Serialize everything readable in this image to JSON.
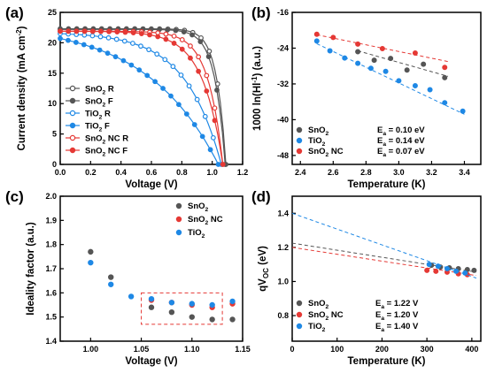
{
  "figure_labels": [
    "(a)",
    "(b)",
    "(c)",
    "(d)"
  ],
  "chart_data": [
    {
      "panel": "(a)",
      "type": "line",
      "xlabel": "Voltage (V)",
      "ylabel": "Current density (mA cm-2)",
      "ylabel_parts": [
        "Current density (mA cm",
        "-2",
        ")"
      ],
      "xlim": [
        0,
        1.2
      ],
      "ylim": [
        0,
        25
      ],
      "xticks": [
        "0.0",
        "0.2",
        "0.4",
        "0.6",
        "0.8",
        "1.0",
        "1.2"
      ],
      "yticks": [
        "0",
        "5",
        "10",
        "15",
        "20",
        "25"
      ],
      "legend_position": "bottom-left",
      "series": [
        {
          "name": "SnO2 R",
          "label_parts": [
            "SnO",
            "2",
            " R"
          ],
          "color": "#555555",
          "filled": false,
          "jsc": 22.3,
          "voc": 1.09,
          "n": 18,
          "v0": 0.845
        },
        {
          "name": "SnO2 F",
          "label_parts": [
            "SnO",
            "2",
            " F"
          ],
          "color": "#555555",
          "filled": true,
          "jsc": 22.2,
          "voc": 1.085,
          "n": 16,
          "v0": 0.83
        },
        {
          "name": "TiO2 R",
          "label_parts": [
            "TiO",
            "2",
            " R"
          ],
          "color": "#1E88E5",
          "filled": false,
          "jsc": 21.5,
          "voc": 1.06,
          "n": 4.5,
          "v0": 0.77
        },
        {
          "name": "TiO2 F",
          "label_parts": [
            "TiO",
            "2",
            " F"
          ],
          "color": "#1E88E5",
          "filled": true,
          "jsc": 20.7,
          "voc": 1.04,
          "n": 2.2,
          "v0": 0.8
        },
        {
          "name": "SnO2 NC R",
          "label_parts": [
            "SnO",
            "2",
            " NC R"
          ],
          "color": "#E53935",
          "filled": false,
          "jsc": 21.9,
          "voc": 1.07,
          "n": 11,
          "v0": 0.79
        },
        {
          "name": "SnO2 NC F",
          "label_parts": [
            "SnO",
            "2",
            " NC F"
          ],
          "color": "#E53935",
          "filled": true,
          "jsc": 21.9,
          "voc": 1.07,
          "n": 8,
          "v0": 0.75
        }
      ]
    },
    {
      "panel": "(b)",
      "type": "scatter",
      "xlabel": "Temperature (K)",
      "ylabel": "1000 ln(Hl-1) (a.u.)",
      "ylabel_parts": [
        "1000 ln(Hl",
        "-1",
        ") (a.u.)"
      ],
      "xlim": [
        2.35,
        3.5
      ],
      "ylim": [
        -50,
        -16
      ],
      "xticks": [
        "2.4",
        "2.6",
        "2.8",
        "3.0",
        "3.2",
        "3.4"
      ],
      "yticks": [
        "-16",
        "-24",
        "-32",
        "-40",
        "-48"
      ],
      "legend_position": "bottom-left",
      "series": [
        {
          "name": "SnO2",
          "label_parts": [
            "SnO",
            "2",
            ""
          ],
          "ea_text": "E",
          "ea_sub": "a",
          "ea_value": " = 0.10 eV",
          "color": "#555555",
          "x": [
            2.75,
            2.85,
            2.95,
            3.05,
            3.15,
            3.28
          ],
          "y": [
            -24.8,
            -26.7,
            -26.3,
            -28.9,
            -27.6,
            -30.6
          ],
          "fit": {
            "x": [
              2.75,
              3.3
            ],
            "y": [
              -24.6,
              -30.3
            ]
          }
        },
        {
          "name": "TiO2",
          "label_parts": [
            "TiO",
            "2",
            ""
          ],
          "ea_text": "E",
          "ea_sub": "a",
          "ea_value": " = 0.14 eV",
          "color": "#1E88E5",
          "x": [
            2.5,
            2.58,
            2.67,
            2.75,
            2.83,
            2.92,
            3.0,
            3.1,
            3.19,
            3.28,
            3.39
          ],
          "y": [
            -22.4,
            -24.6,
            -26.2,
            -27.4,
            -28.5,
            -29.2,
            -31.3,
            -32.4,
            -33.3,
            -36.2,
            -38.1
          ],
          "fit": {
            "x": [
              2.5,
              3.4
            ],
            "y": [
              -23.0,
              -38.8
            ]
          }
        },
        {
          "name": "SnO2 NC",
          "label_parts": [
            "SnO",
            "2",
            " NC"
          ],
          "ea_text": "E",
          "ea_sub": "a",
          "ea_value": " = 0.07 eV",
          "color": "#E53935",
          "x": [
            2.5,
            2.6,
            2.75,
            2.9,
            3.1,
            3.28
          ],
          "y": [
            -20.9,
            -21.6,
            -23.1,
            -24.1,
            -25.1,
            -28.3
          ],
          "fit": {
            "x": [
              2.5,
              3.3
            ],
            "y": [
              -21.0,
              -27.0
            ]
          }
        }
      ]
    },
    {
      "panel": "(c)",
      "type": "scatter",
      "xlabel": "Voltage (V)",
      "ylabel": "Ideality factor (a.u.)",
      "xlim": [
        0.97,
        1.15
      ],
      "ylim": [
        1.4,
        2.0
      ],
      "xticks": [
        "1.00",
        "1.05",
        "1.10",
        "1.15"
      ],
      "xtick_values": [
        1.0,
        1.05,
        1.1,
        1.15
      ],
      "yticks": [
        "1.4",
        "1.5",
        "1.6",
        "1.7",
        "1.8",
        "1.9",
        "2.0"
      ],
      "legend_position": "top-right",
      "highlight_box": {
        "x": [
          1.05,
          1.13
        ],
        "y": [
          1.47,
          1.6
        ]
      },
      "series": [
        {
          "name": "SnO2",
          "label_parts": [
            "SnO",
            "2",
            ""
          ],
          "color": "#555555",
          "x": [
            1.0,
            1.02,
            1.06,
            1.08,
            1.1,
            1.12,
            1.14
          ],
          "y": [
            1.77,
            1.665,
            1.54,
            1.52,
            1.5,
            1.49,
            1.49
          ]
        },
        {
          "name": "SnO2 NC",
          "label_parts": [
            "SnO",
            "2",
            " NC"
          ],
          "color": "#E53935",
          "x": [
            1.06,
            1.08,
            1.1,
            1.12,
            1.14
          ],
          "y": [
            1.57,
            1.56,
            1.55,
            1.54,
            1.555
          ]
        },
        {
          "name": "TiO2",
          "label_parts": [
            "TiO",
            "2",
            ""
          ],
          "color": "#1E88E5",
          "x": [
            1.0,
            1.02,
            1.04,
            1.06,
            1.08,
            1.1,
            1.12,
            1.14
          ],
          "y": [
            1.725,
            1.635,
            1.585,
            1.575,
            1.56,
            1.555,
            1.55,
            1.565
          ]
        }
      ]
    },
    {
      "panel": "(d)",
      "type": "scatter",
      "xlabel": "Temperature (K)",
      "ylabel": "qVOC (eV)",
      "ylabel_parts": [
        "qV",
        "OC",
        " (eV)"
      ],
      "xlim": [
        0,
        420
      ],
      "ylim": [
        0.65,
        1.5
      ],
      "xticks": [
        "0",
        "100",
        "200",
        "300",
        "400"
      ],
      "yticks": [
        "0.8",
        "1.0",
        "1.2",
        "1.4"
      ],
      "legend_position": "bottom-left",
      "series": [
        {
          "name": "SnO2",
          "label_parts": [
            "SnO",
            "2",
            ""
          ],
          "ea_text": "E",
          "ea_sub": "a",
          "ea_value": " = 1.22 V",
          "color": "#555555",
          "x": [
            310,
            330,
            350,
            370,
            390,
            405
          ],
          "y": [
            1.095,
            1.085,
            1.08,
            1.075,
            1.07,
            1.065
          ],
          "fit": {
            "x": [
              0,
              410
            ],
            "y": [
              1.225,
              1.055
            ]
          }
        },
        {
          "name": "SnO2 NC",
          "label_parts": [
            "SnO",
            "2",
            " NC"
          ],
          "ea_text": "E",
          "ea_sub": "a",
          "ea_value": " = 1.20 V",
          "color": "#E53935",
          "x": [
            300,
            320,
            345,
            370,
            390
          ],
          "y": [
            1.065,
            1.06,
            1.055,
            1.045,
            1.04
          ],
          "fit": {
            "x": [
              0,
              410
            ],
            "y": [
              1.2,
              1.035
            ]
          }
        },
        {
          "name": "TiO2",
          "label_parts": [
            "TiO",
            "2",
            ""
          ],
          "ea_text": "E",
          "ea_sub": "a",
          "ea_value": " = 1.40 V",
          "color": "#1E88E5",
          "x": [
            305,
            325,
            345,
            365,
            385
          ],
          "y": [
            1.1,
            1.09,
            1.075,
            1.06,
            1.05
          ],
          "fit": {
            "x": [
              0,
              410
            ],
            "y": [
              1.4,
              1.02
            ]
          }
        }
      ]
    }
  ]
}
